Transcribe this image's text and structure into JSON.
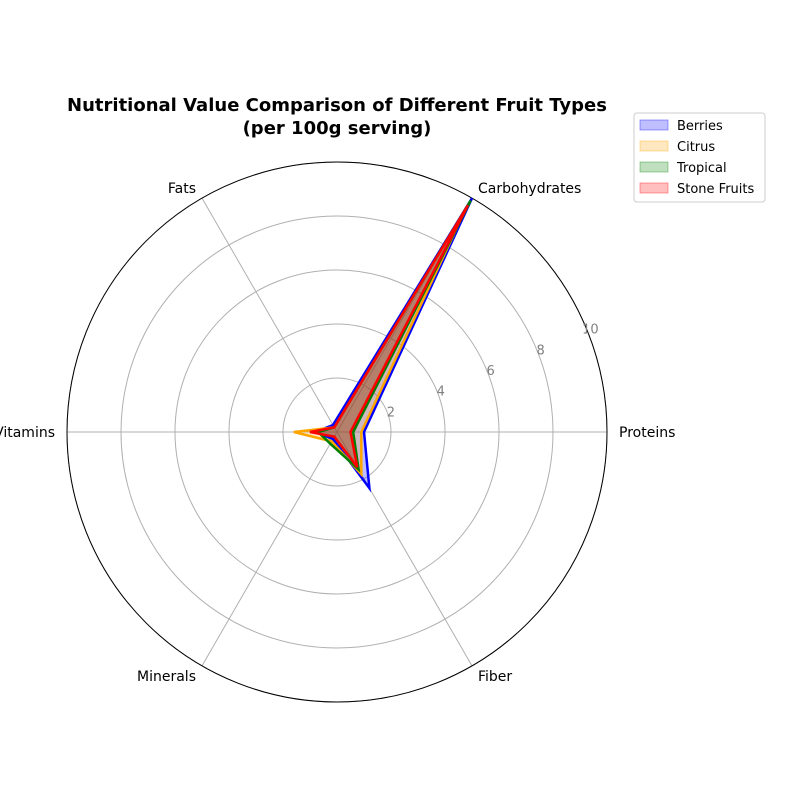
{
  "chart_data": {
    "type": "radar",
    "title_line1": "Nutritional Value Comparison of Different Fruit Types",
    "title_line2": "(per 100g serving)",
    "axes": [
      "Proteins",
      "Carbohydrates",
      "Fats",
      "Vitamins",
      "Minerals",
      "Fiber"
    ],
    "radial_ticks": [
      "2",
      "4",
      "6",
      "8",
      "10"
    ],
    "rlim": [
      0,
      10
    ],
    "grid": true,
    "legend_position": "top-right",
    "series": [
      {
        "name": "Berries",
        "color": "#0000ff",
        "values": [
          1.0,
          10.0,
          0.3,
          0.8,
          0.3,
          2.4
        ]
      },
      {
        "name": "Citrus",
        "color": "#ffa500",
        "values": [
          0.9,
          9.5,
          0.2,
          1.6,
          0.4,
          1.8
        ]
      },
      {
        "name": "Tropical",
        "color": "#008000",
        "values": [
          0.6,
          9.9,
          0.2,
          0.7,
          0.5,
          1.6
        ]
      },
      {
        "name": "Stone Fruits",
        "color": "#ff0000",
        "values": [
          0.5,
          9.7,
          0.2,
          1.0,
          0.2,
          1.5
        ]
      }
    ]
  }
}
